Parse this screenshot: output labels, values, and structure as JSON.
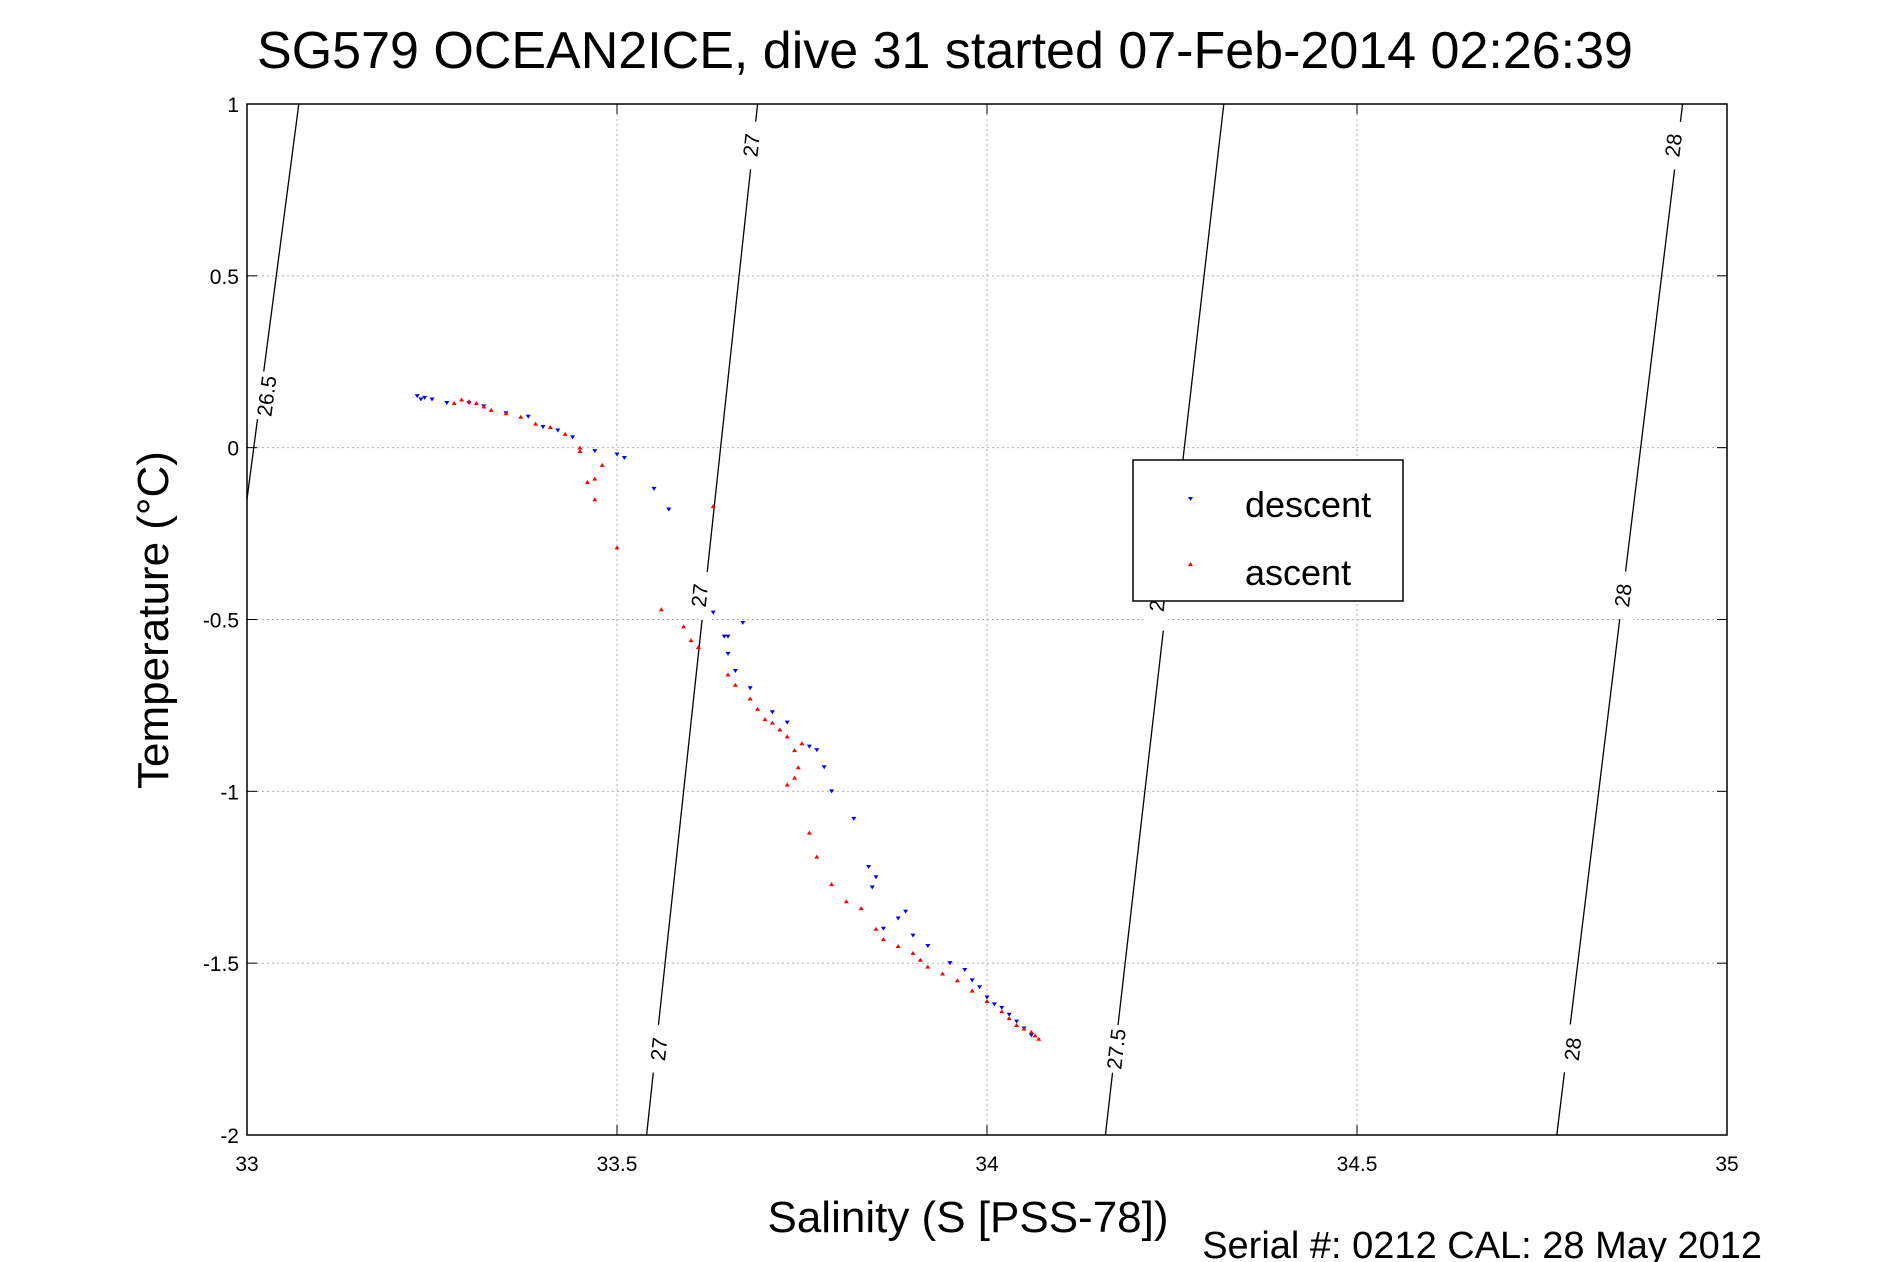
{
  "chart_data": {
    "type": "scatter",
    "title": "SG579 OCEAN2ICE, dive 31 started 07-Feb-2014 02:26:39",
    "xlabel": "Salinity (S [PSS-78])",
    "ylabel": "Temperature (°C)",
    "xlim": [
      33,
      35
    ],
    "ylim": [
      -2,
      1
    ],
    "x_ticks": [
      "33",
      "33.5",
      "34",
      "34.5",
      "35"
    ],
    "y_ticks": [
      "1",
      "0.5",
      "0",
      "-0.5",
      "-1",
      "-1.5",
      "-2"
    ],
    "grid": true,
    "legend_position": "center-right",
    "footer": "Serial #: 0212  CAL: 28 May 2012",
    "series": [
      {
        "name": "descent",
        "color": "#0000ff",
        "marker": "triangle-down",
        "x": [
          33.23,
          33.235,
          33.24,
          33.25,
          33.27,
          33.3,
          33.32,
          33.35,
          33.38,
          33.4,
          33.42,
          33.44,
          33.47,
          33.5,
          33.51,
          33.55,
          33.57,
          33.63,
          33.65,
          33.67,
          33.645,
          33.65,
          33.66,
          33.68,
          33.71,
          33.73,
          33.76,
          33.77,
          33.78,
          33.79,
          33.82,
          33.84,
          33.845,
          33.85,
          33.86,
          33.88,
          33.89,
          33.9,
          33.92,
          33.95,
          33.97,
          33.98,
          33.99,
          34.0,
          34.01,
          34.02,
          34.03,
          34.04,
          34.05,
          34.06
        ],
        "y": [
          0.15,
          0.14,
          0.145,
          0.14,
          0.13,
          0.13,
          0.12,
          0.1,
          0.09,
          0.06,
          0.05,
          0.03,
          -0.01,
          -0.02,
          -0.03,
          -0.12,
          -0.18,
          -0.48,
          -0.55,
          -0.51,
          -0.55,
          -0.6,
          -0.65,
          -0.7,
          -0.77,
          -0.8,
          -0.87,
          -0.88,
          -0.93,
          -1.0,
          -1.08,
          -1.22,
          -1.28,
          -1.25,
          -1.4,
          -1.37,
          -1.35,
          -1.42,
          -1.45,
          -1.5,
          -1.52,
          -1.55,
          -1.57,
          -1.6,
          -1.62,
          -1.63,
          -1.65,
          -1.67,
          -1.69,
          -1.71
        ]
      },
      {
        "name": "ascent",
        "color": "#ff0000",
        "marker": "triangle-up",
        "x": [
          33.28,
          33.29,
          33.3,
          33.31,
          33.32,
          33.33,
          33.35,
          33.37,
          33.39,
          33.41,
          33.43,
          33.45,
          33.45,
          33.46,
          33.47,
          33.47,
          33.48,
          33.5,
          33.56,
          33.59,
          33.6,
          33.61,
          33.63,
          33.65,
          33.66,
          33.68,
          33.69,
          33.7,
          33.71,
          33.72,
          33.73,
          33.74,
          33.745,
          33.75,
          33.74,
          33.73,
          33.76,
          33.77,
          33.79,
          33.81,
          33.83,
          33.85,
          33.86,
          33.88,
          33.9,
          33.91,
          33.92,
          33.94,
          33.96,
          33.98,
          34.0,
          34.02,
          34.03,
          34.04,
          34.05,
          34.06,
          34.065,
          34.07
        ],
        "y": [
          0.13,
          0.14,
          0.135,
          0.13,
          0.12,
          0.11,
          0.1,
          0.09,
          0.07,
          0.06,
          0.04,
          0.0,
          -0.01,
          -0.1,
          -0.15,
          -0.09,
          -0.05,
          -0.29,
          -0.47,
          -0.52,
          -0.56,
          -0.58,
          -0.17,
          -0.66,
          -0.69,
          -0.73,
          -0.76,
          -0.79,
          -0.8,
          -0.82,
          -0.84,
          -0.88,
          -0.93,
          -0.86,
          -0.96,
          -0.98,
          -1.12,
          -1.19,
          -1.27,
          -1.32,
          -1.34,
          -1.4,
          -1.43,
          -1.45,
          -1.47,
          -1.49,
          -1.51,
          -1.53,
          -1.55,
          -1.58,
          -1.61,
          -1.64,
          -1.66,
          -1.68,
          -1.69,
          -1.7,
          -1.71,
          -1.72
        ]
      }
    ],
    "contours": [
      {
        "level": "26.5",
        "x": [
          33.0,
          33.07
        ],
        "y": [
          -0.15,
          1.0
        ],
        "labels": [
          {
            "x": 33.027,
            "y": 0.15,
            "text": "26.5"
          }
        ]
      },
      {
        "level": "27",
        "x": [
          33.54,
          33.69
        ],
        "y": [
          -2.0,
          1.0
        ],
        "labels": [
          {
            "x": 33.682,
            "y": 0.88,
            "text": "27"
          },
          {
            "x": 33.612,
            "y": -0.43,
            "text": "27"
          },
          {
            "x": 33.557,
            "y": -1.75,
            "text": "27"
          }
        ]
      },
      {
        "level": "27.5",
        "x": [
          34.16,
          34.32
        ],
        "y": [
          -2.0,
          1.0
        ],
        "labels": [
          {
            "x": 34.23,
            "y": -0.46,
            "text": "2"
          },
          {
            "x": 34.175,
            "y": -1.75,
            "text": "27.5"
          }
        ]
      },
      {
        "level": "28",
        "x": [
          34.77,
          34.94
        ],
        "y": [
          -2.0,
          1.0
        ],
        "labels": [
          {
            "x": 34.928,
            "y": 0.88,
            "text": "28"
          },
          {
            "x": 34.86,
            "y": -0.43,
            "text": "28"
          },
          {
            "x": 34.792,
            "y": -1.75,
            "text": "28"
          }
        ]
      }
    ]
  }
}
